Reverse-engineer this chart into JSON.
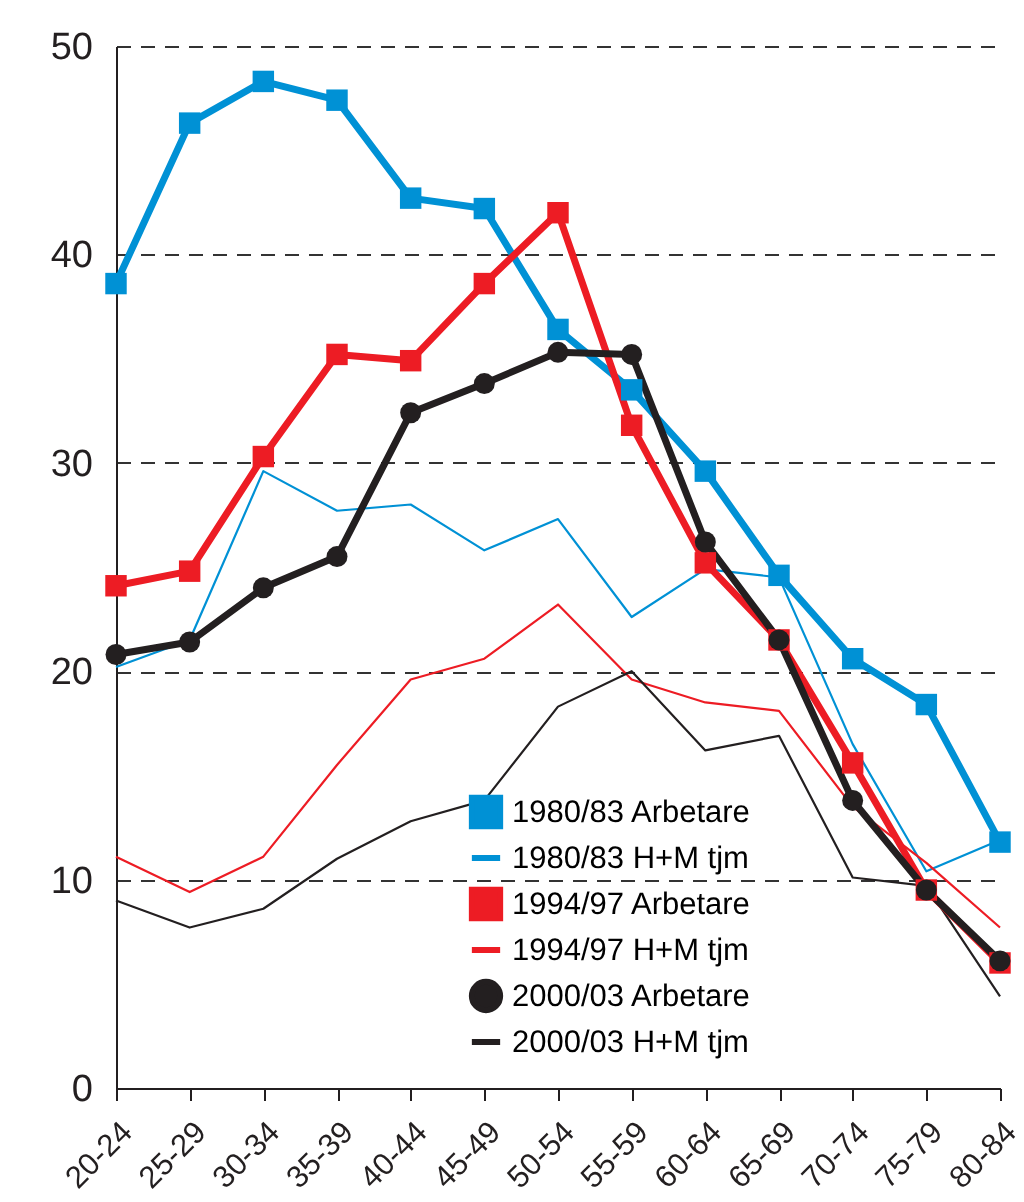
{
  "chart_data": {
    "type": "line",
    "categories": [
      "20-24",
      "25-29",
      "30-34",
      "35-39",
      "40-44",
      "45-49",
      "50-54",
      "55-59",
      "60-64",
      "65-69",
      "70-74",
      "75-79",
      "80-84"
    ],
    "series": [
      {
        "name": "1980/83 Arbetare",
        "color": "#0091d5",
        "marker": "square",
        "values": [
          38.6,
          46.3,
          48.3,
          47.4,
          42.7,
          42.2,
          36.4,
          33.5,
          29.6,
          24.6,
          20.6,
          18.4,
          11.8
        ]
      },
      {
        "name": "1980/83 H+M tjm",
        "color": "#0091d5",
        "marker": "none",
        "values": [
          20.2,
          21.5,
          29.6,
          27.7,
          28.0,
          25.8,
          27.3,
          22.6,
          24.9,
          24.5,
          16.5,
          10.4,
          11.9
        ]
      },
      {
        "name": "1994/97 Arbetare",
        "color": "#ed1c24",
        "marker": "square",
        "values": [
          24.1,
          24.8,
          30.3,
          35.2,
          34.9,
          38.6,
          42.0,
          31.8,
          25.2,
          21.5,
          15.6,
          9.5,
          6.0
        ]
      },
      {
        "name": "1994/97 H+M tjm",
        "color": "#ed1c24",
        "marker": "none",
        "values": [
          11.1,
          9.4,
          11.1,
          15.5,
          19.6,
          20.6,
          23.2,
          19.6,
          18.5,
          18.1,
          13.5,
          10.8,
          7.7
        ]
      },
      {
        "name": "2000/03 Arbetare",
        "color": "#231f20",
        "marker": "circle",
        "values": [
          20.8,
          21.4,
          24.0,
          25.5,
          32.4,
          33.8,
          35.3,
          35.2,
          26.2,
          21.5,
          13.8,
          9.5,
          6.1
        ]
      },
      {
        "name": "2000/03 H+M tjm",
        "color": "#231f20",
        "marker": "none",
        "values": [
          9.0,
          7.7,
          8.6,
          11.0,
          12.8,
          13.8,
          18.3,
          20.0,
          16.2,
          16.9,
          10.1,
          9.7,
          4.4
        ]
      }
    ],
    "ylim": [
      0,
      50
    ],
    "yticks": [
      0,
      10,
      20,
      30,
      40,
      50
    ],
    "grid": "y",
    "legend": "bottom right"
  }
}
